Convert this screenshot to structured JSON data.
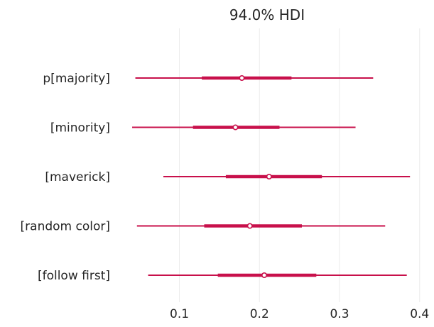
{
  "chart_data": {
    "type": "forest",
    "title": "94.0% HDI",
    "xlabel": "",
    "ylabel": "",
    "xlim": [
      0.025,
      0.41
    ],
    "xticks": [
      0.1,
      0.2,
      0.3,
      0.4
    ],
    "xtick_labels": [
      "0.1",
      "0.2",
      "0.3",
      "0.4"
    ],
    "grid": "vertical",
    "color": "#c8104b",
    "rows": [
      {
        "label": "p[majority]",
        "hdi_low": 0.045,
        "q_low": 0.128,
        "median": 0.178,
        "q_high": 0.24,
        "hdi_high": 0.342
      },
      {
        "label": "[minority]",
        "hdi_low": 0.041,
        "q_low": 0.117,
        "median": 0.17,
        "q_high": 0.225,
        "hdi_high": 0.32
      },
      {
        "label": "[maverick]",
        "hdi_low": 0.08,
        "q_low": 0.158,
        "median": 0.212,
        "q_high": 0.278,
        "hdi_high": 0.388
      },
      {
        "label": "[random color]",
        "hdi_low": 0.047,
        "q_low": 0.131,
        "median": 0.188,
        "q_high": 0.253,
        "hdi_high": 0.357
      },
      {
        "label": "[follow first]",
        "hdi_low": 0.061,
        "q_low": 0.148,
        "median": 0.206,
        "q_high": 0.271,
        "hdi_high": 0.384
      }
    ]
  }
}
